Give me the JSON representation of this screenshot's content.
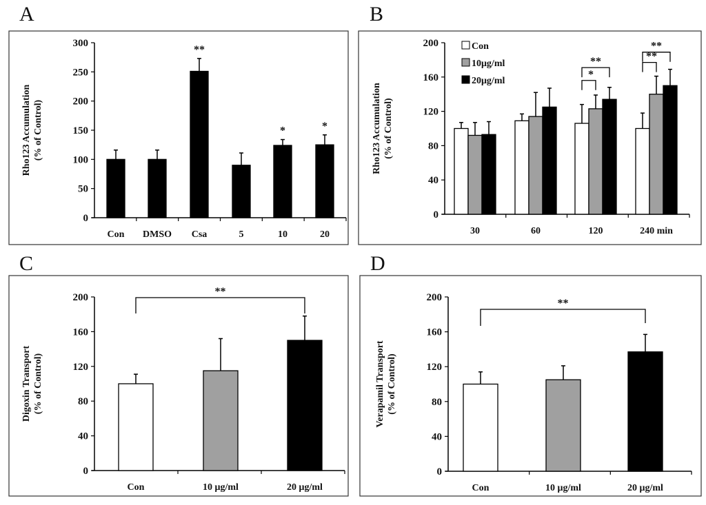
{
  "chart_data": [
    {
      "panel": "A",
      "type": "bar",
      "ylabel": [
        "Rho123 Accumulation",
        "(% of Control)"
      ],
      "ylim": [
        0,
        300
      ],
      "yticks": [
        0,
        50,
        100,
        150,
        200,
        250,
        300
      ],
      "categories": [
        "Con",
        "DMSO",
        "Csa",
        "5",
        "10",
        "20"
      ],
      "series": [
        {
          "color": "#000000",
          "values": [
            100,
            100,
            251,
            90,
            124,
            125
          ],
          "errors": [
            16,
            16,
            22,
            21,
            10,
            17
          ]
        }
      ],
      "annotations": [
        "",
        "",
        "**",
        "",
        "*",
        "*"
      ]
    },
    {
      "panel": "B",
      "type": "bar",
      "ylabel": [
        "Rho123 Accumulation",
        "(% of Control)"
      ],
      "ylim": [
        0,
        200
      ],
      "yticks": [
        0,
        40,
        80,
        120,
        160,
        200
      ],
      "categories": [
        "30",
        "60",
        "120",
        "240 min"
      ],
      "legend_position": "top-left",
      "series": [
        {
          "name": "Con",
          "color": "#ffffff",
          "values": [
            100,
            109,
            106,
            100
          ],
          "errors": [
            7,
            8,
            22,
            18
          ]
        },
        {
          "name": "10μg/ml",
          "color": "#a0a0a0",
          "values": [
            92,
            114,
            123,
            140
          ],
          "errors": [
            15,
            28,
            16,
            21
          ]
        },
        {
          "name": "20μg/ml",
          "color": "#000000",
          "values": [
            93,
            125,
            134,
            150
          ],
          "errors": [
            15,
            22,
            14,
            19
          ]
        }
      ],
      "brackets": [
        {
          "category": "120",
          "from": "Con",
          "to": "10μg/ml",
          "label": "*"
        },
        {
          "category": "120",
          "from": "Con",
          "to": "20μg/ml",
          "label": "**"
        },
        {
          "category": "240 min",
          "from": "Con",
          "to": "10μg/ml",
          "label": "**"
        },
        {
          "category": "240 min",
          "from": "Con",
          "to": "20μg/ml",
          "label": "**"
        }
      ]
    },
    {
      "panel": "C",
      "type": "bar",
      "ylabel": [
        "Digoxin Transport",
        "(% of Control)"
      ],
      "ylim": [
        0,
        200
      ],
      "yticks": [
        0,
        40,
        80,
        120,
        160,
        200
      ],
      "categories": [
        "Con",
        "10 μg/ml",
        "20 μg/ml"
      ],
      "series": [
        {
          "colors": [
            "#ffffff",
            "#a0a0a0",
            "#000000"
          ],
          "values": [
            100,
            115,
            150
          ],
          "errors": [
            11,
            37,
            28
          ]
        }
      ],
      "brackets": [
        {
          "from": "Con",
          "to": "20 μg/ml",
          "label": "**"
        }
      ]
    },
    {
      "panel": "D",
      "type": "bar",
      "ylabel": [
        "Verapamil Transport",
        "(% of Control)"
      ],
      "ylim": [
        0,
        200
      ],
      "yticks": [
        0,
        40,
        80,
        120,
        160,
        200
      ],
      "categories": [
        "Con",
        "10 μg/ml",
        "20 μg/ml"
      ],
      "series": [
        {
          "colors": [
            "#ffffff",
            "#a0a0a0",
            "#000000"
          ],
          "values": [
            100,
            105,
            137
          ],
          "errors": [
            14,
            16,
            20
          ]
        }
      ],
      "brackets": [
        {
          "from": "Con",
          "to": "20 μg/ml",
          "label": "**"
        }
      ]
    }
  ]
}
